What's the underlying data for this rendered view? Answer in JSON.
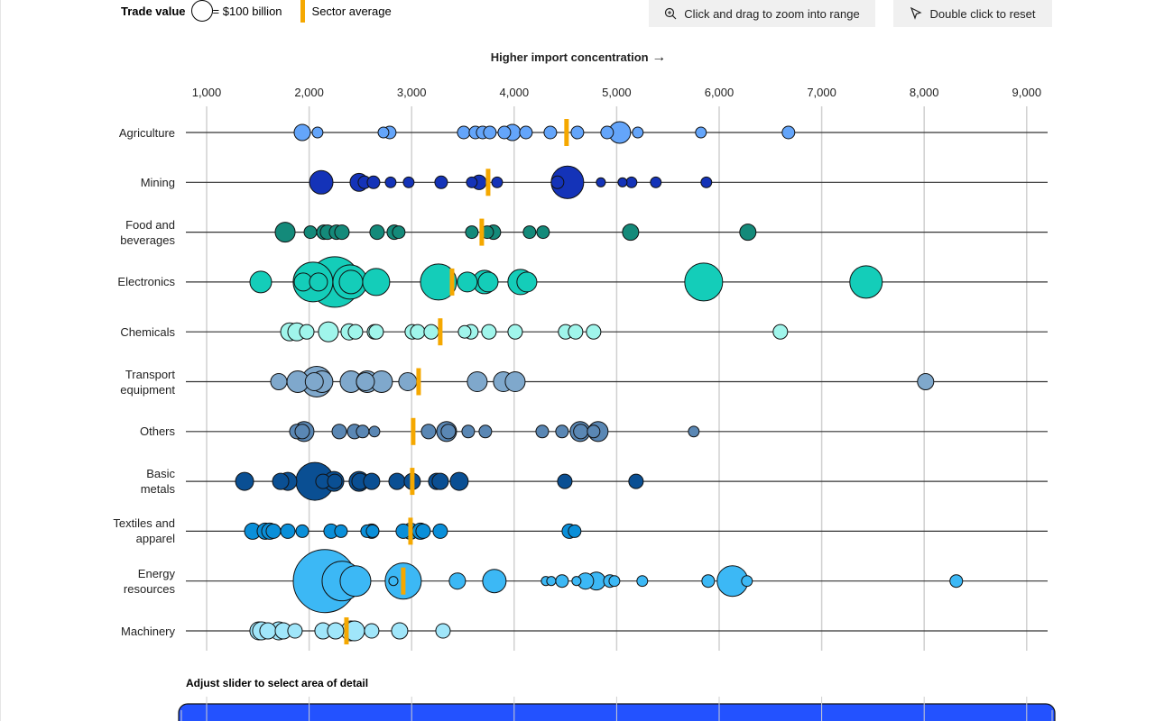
{
  "legend": {
    "title": "Trade value",
    "size_label": "= $100 billion",
    "size_ref_value": 100,
    "avg_label": "Sector average"
  },
  "buttons": {
    "zoom": "Click and drag to zoom into range",
    "reset": "Double click to reset"
  },
  "direction_label": "Higher import concentration",
  "slider_title": "Adjust slider to select area of detail",
  "colors": {
    "average": "#f5a800",
    "slider": "#2352ff"
  },
  "chart_data": {
    "type": "scatter",
    "subtype": "beeswarm",
    "xlim": [
      800,
      9200
    ],
    "x_ticks": [
      "1,000",
      "2,000",
      "3,000",
      "4,000",
      "5,000",
      "6,000",
      "7,000",
      "8,000",
      "9,000"
    ],
    "x_tick_values": [
      1000,
      2000,
      3000,
      4000,
      5000,
      6000,
      7000,
      8000,
      9000
    ],
    "grid": true,
    "size_unit": "$ billion trade value",
    "series": [
      {
        "name": "Agriculture",
        "color": "#64a5fa",
        "average": 4511,
        "points": [
          [
            1933,
            48
          ],
          [
            2082,
            21
          ],
          [
            2725,
            21
          ],
          [
            2786,
            29
          ],
          [
            3508,
            29
          ],
          [
            3622,
            29
          ],
          [
            3693,
            29
          ],
          [
            3763,
            29
          ],
          [
            3904,
            29
          ],
          [
            3983,
            48
          ],
          [
            4115,
            29
          ],
          [
            4353,
            29
          ],
          [
            4617,
            29
          ],
          [
            4907,
            29
          ],
          [
            5030,
            85
          ],
          [
            5206,
            21
          ],
          [
            5822,
            21
          ],
          [
            6676,
            29
          ]
        ]
      },
      {
        "name": "Mining",
        "color": "#1433b8",
        "average": 3746,
        "points": [
          [
            2118,
            100
          ],
          [
            2487,
            59
          ],
          [
            2540,
            29
          ],
          [
            2628,
            29
          ],
          [
            2795,
            21
          ],
          [
            2971,
            21
          ],
          [
            3288,
            29
          ],
          [
            3587,
            21
          ],
          [
            3658,
            38
          ],
          [
            3834,
            21
          ],
          [
            4520,
            192
          ],
          [
            4423,
            29
          ],
          [
            4846,
            15
          ],
          [
            5057,
            15
          ],
          [
            5145,
            21
          ],
          [
            5382,
            21
          ],
          [
            5875,
            21
          ]
        ]
      },
      {
        "name": "Food and|beverages",
        "color": "#148a7a",
        "average": 3684,
        "points": [
          [
            1766,
            72
          ],
          [
            2012,
            29
          ],
          [
            2144,
            38
          ],
          [
            2179,
            38
          ],
          [
            2267,
            38
          ],
          [
            2320,
            38
          ],
          [
            2663,
            38
          ],
          [
            2830,
            38
          ],
          [
            2874,
            29
          ],
          [
            3587,
            29
          ],
          [
            3737,
            29
          ],
          [
            3798,
            38
          ],
          [
            4150,
            29
          ],
          [
            4282,
            29
          ],
          [
            5136,
            48
          ],
          [
            6280,
            48
          ]
        ]
      },
      {
        "name": "Electronics",
        "color": "#14cdb9",
        "average": 3394,
        "points": [
          [
            1528,
            85
          ],
          [
            2250,
            464
          ],
          [
            2038,
            286
          ],
          [
            1942,
            59
          ],
          [
            2091,
            59
          ],
          [
            2399,
            214
          ],
          [
            2408,
            100
          ],
          [
            2654,
            133
          ],
          [
            3262,
            237
          ],
          [
            3543,
            72
          ],
          [
            3711,
            100
          ],
          [
            3746,
            72
          ],
          [
            4062,
            116
          ],
          [
            4124,
            72
          ],
          [
            5849,
            261
          ],
          [
            7433,
            192
          ]
        ]
      },
      {
        "name": "Chemicals",
        "color": "#a0f5eb",
        "average": 3279,
        "points": [
          [
            1810,
            59
          ],
          [
            1880,
            59
          ],
          [
            1977,
            38
          ],
          [
            2188,
            72
          ],
          [
            2390,
            48
          ],
          [
            2452,
            38
          ],
          [
            2637,
            38
          ],
          [
            2654,
            38
          ],
          [
            3006,
            38
          ],
          [
            3059,
            38
          ],
          [
            3191,
            38
          ],
          [
            3517,
            29
          ],
          [
            3578,
            38
          ],
          [
            3754,
            38
          ],
          [
            4010,
            38
          ],
          [
            4502,
            38
          ],
          [
            4599,
            38
          ],
          [
            4775,
            38
          ],
          [
            6597,
            38
          ]
        ]
      },
      {
        "name": "Transport|equipment",
        "color": "#7fa8cc",
        "average": 3068,
        "points": [
          [
            1704,
            48
          ],
          [
            1889,
            85
          ],
          [
            2074,
            171
          ],
          [
            2050,
            59
          ],
          [
            2126,
            85
          ],
          [
            2408,
            85
          ],
          [
            2549,
            59
          ],
          [
            2566,
            85
          ],
          [
            2707,
            85
          ],
          [
            2962,
            59
          ],
          [
            3640,
            72
          ],
          [
            3895,
            72
          ],
          [
            4010,
            72
          ],
          [
            8014,
            48
          ]
        ]
      },
      {
        "name": "Others",
        "color": "#5a87b4",
        "average": 3015,
        "points": [
          [
            1880,
            38
          ],
          [
            1950,
            72
          ],
          [
            1933,
            38
          ],
          [
            2294,
            38
          ],
          [
            2443,
            38
          ],
          [
            2522,
            29
          ],
          [
            2637,
            21
          ],
          [
            3165,
            38
          ],
          [
            3341,
            72
          ],
          [
            3358,
            38
          ],
          [
            3552,
            29
          ],
          [
            3719,
            29
          ],
          [
            4274,
            29
          ],
          [
            4467,
            29
          ],
          [
            4643,
            72
          ],
          [
            4650,
            38
          ],
          [
            4819,
            72
          ],
          [
            4775,
            29
          ],
          [
            5752,
            21
          ]
        ]
      },
      {
        "name": "Basic|metals",
        "color": "#0a4f93",
        "average": 3006,
        "points": [
          [
            1370,
            59
          ],
          [
            1722,
            48
          ],
          [
            1792,
            59
          ],
          [
            2056,
            261
          ],
          [
            2135,
            38
          ],
          [
            2241,
            72
          ],
          [
            2250,
            38
          ],
          [
            2487,
            72
          ],
          [
            2496,
            48
          ],
          [
            2610,
            48
          ],
          [
            2857,
            48
          ],
          [
            3006,
            48
          ],
          [
            3244,
            48
          ],
          [
            3279,
            48
          ],
          [
            3464,
            59
          ],
          [
            4494,
            38
          ],
          [
            5189,
            38
          ]
        ]
      },
      {
        "name": "Textiles and|apparel",
        "color": "#0a8fd9",
        "average": 2989,
        "points": [
          [
            1449,
            48
          ],
          [
            1572,
            48
          ],
          [
            1616,
            48
          ],
          [
            1651,
            38
          ],
          [
            1792,
            38
          ],
          [
            1933,
            29
          ],
          [
            2214,
            38
          ],
          [
            2311,
            29
          ],
          [
            2566,
            29
          ],
          [
            2610,
            38
          ],
          [
            2619,
            29
          ],
          [
            2918,
            38
          ],
          [
            2989,
            48
          ],
          [
            3086,
            48
          ],
          [
            3112,
            38
          ],
          [
            3279,
            38
          ],
          [
            4538,
            38
          ],
          [
            4590,
            29
          ]
        ]
      },
      {
        "name": "Energy|resources",
        "color": "#3cb8f5",
        "average": 2918,
        "points": [
          [
            2153,
            725
          ],
          [
            2320,
            286
          ],
          [
            2452,
            171
          ],
          [
            2822,
            15
          ],
          [
            2918,
            237
          ],
          [
            3446,
            48
          ],
          [
            3807,
            100
          ],
          [
            4309,
            15
          ],
          [
            4362,
            15
          ],
          [
            4467,
            29
          ],
          [
            4608,
            15
          ],
          [
            4696,
            48
          ],
          [
            4802,
            59
          ],
          [
            4934,
            29
          ],
          [
            4978,
            21
          ],
          [
            5250,
            21
          ],
          [
            5893,
            29
          ],
          [
            6130,
            171
          ],
          [
            6271,
            21
          ],
          [
            8313,
            29
          ]
        ]
      },
      {
        "name": "Machinery",
        "color": "#a0e6fa",
        "average": 2364,
        "points": [
          [
            1510,
            59
          ],
          [
            1536,
            59
          ],
          [
            1598,
            48
          ],
          [
            1704,
            59
          ],
          [
            1748,
            48
          ],
          [
            1862,
            38
          ],
          [
            2135,
            48
          ],
          [
            2258,
            48
          ],
          [
            2408,
            72
          ],
          [
            2443,
            72
          ],
          [
            2610,
            38
          ],
          [
            2883,
            48
          ],
          [
            3306,
            38
          ]
        ]
      }
    ]
  }
}
